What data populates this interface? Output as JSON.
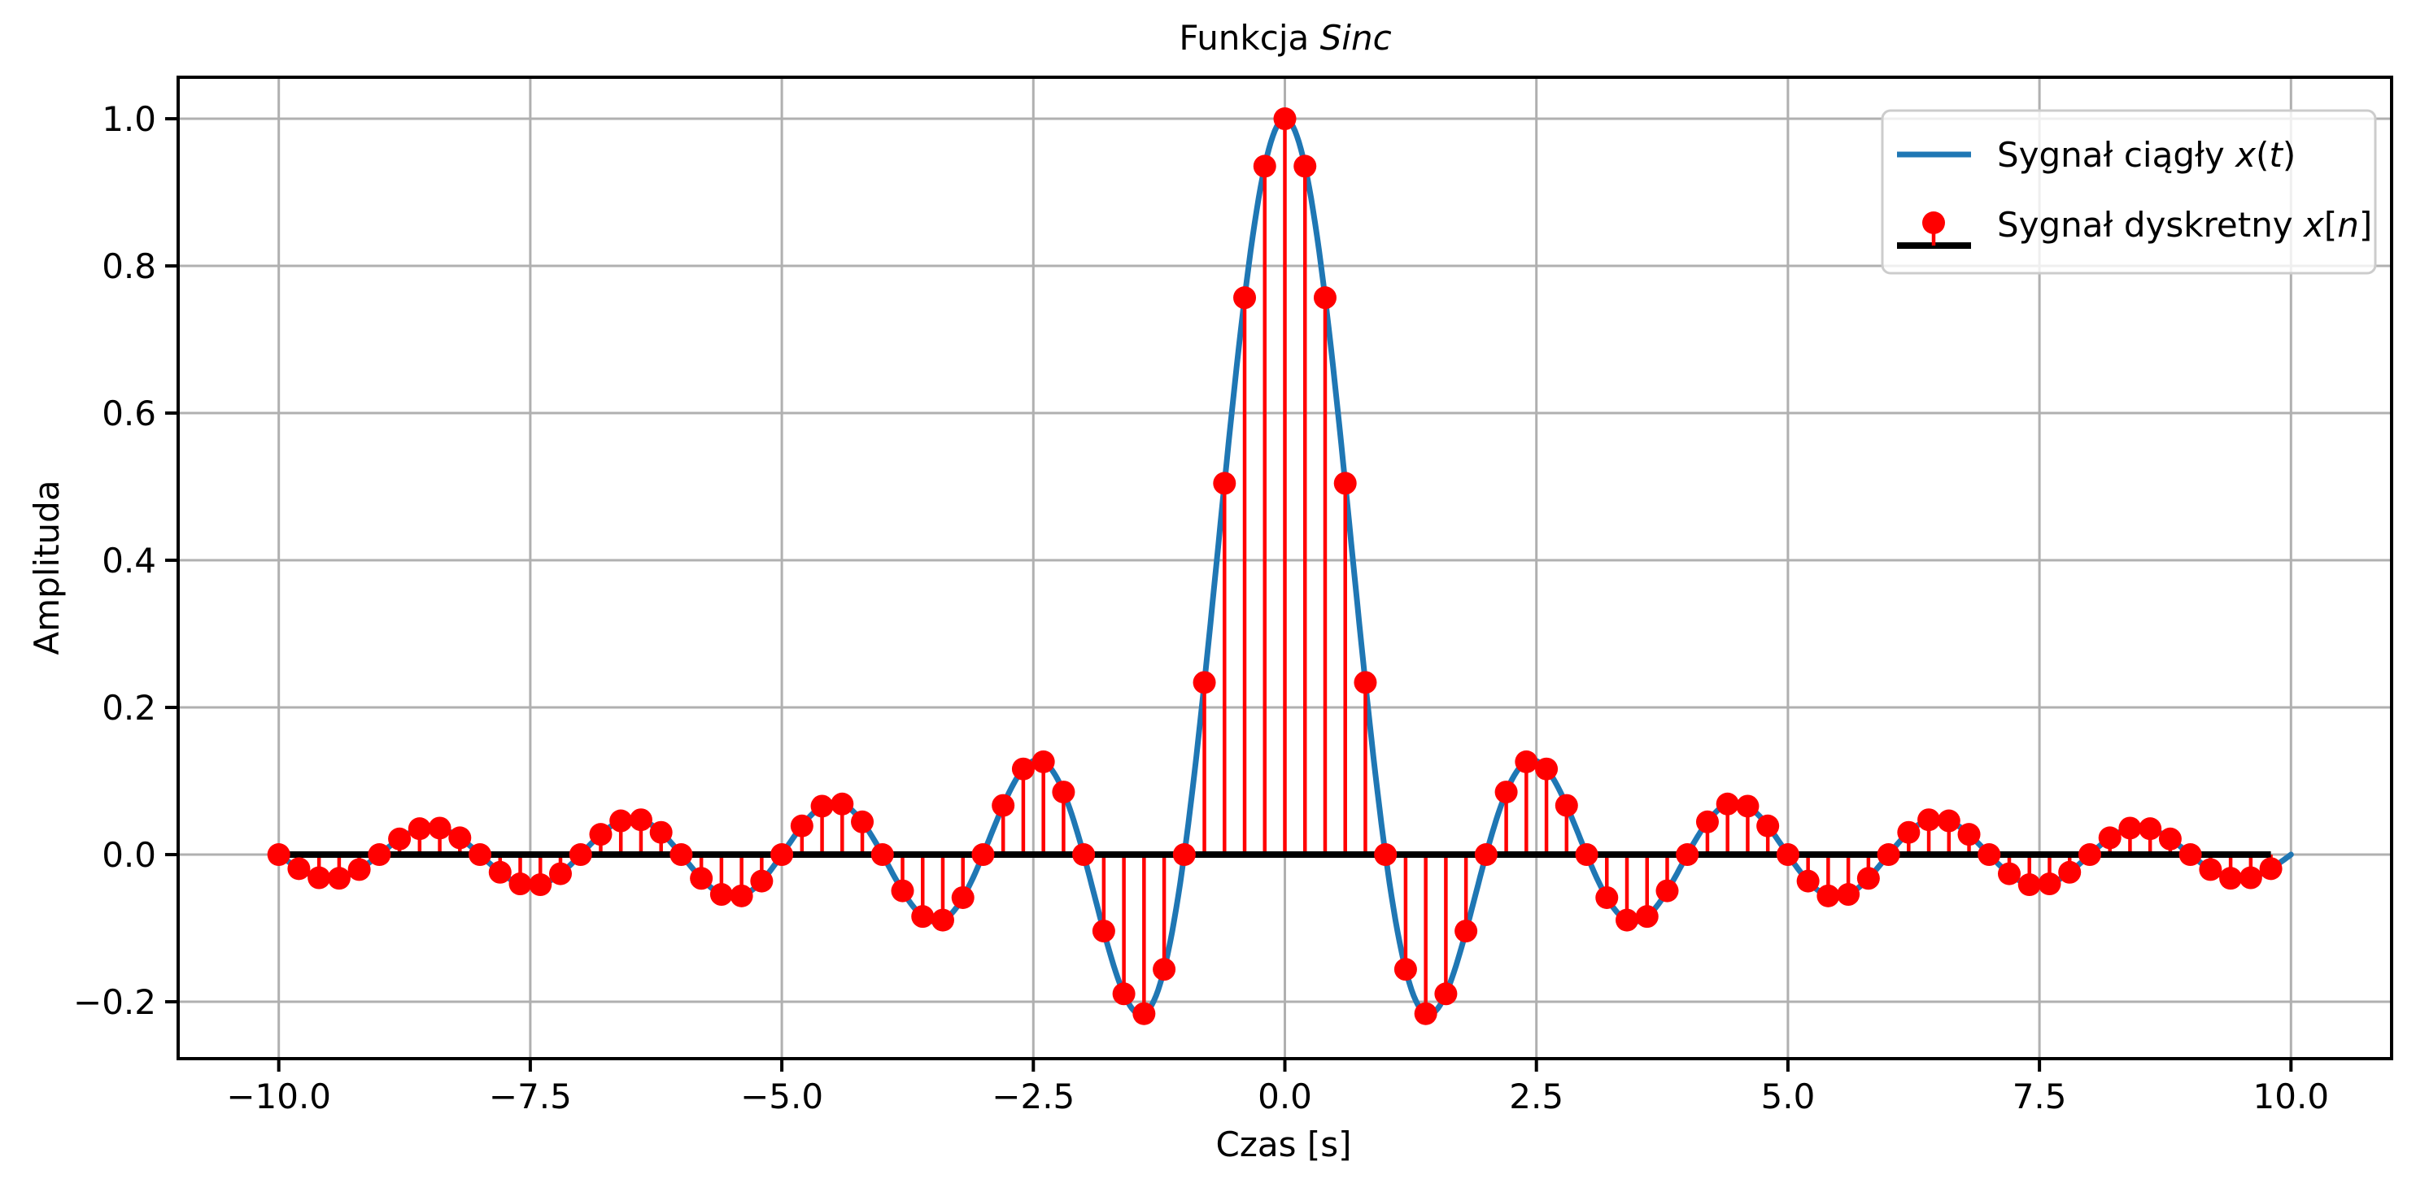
{
  "figure": {
    "background": "#ffffff",
    "title": {
      "prefix": "Funkcja ",
      "math": "Sinc"
    },
    "xlabel": "Czas [s]",
    "ylabel": "Amplituda",
    "legend": {
      "position": "upper right",
      "border_color": "#cccccc",
      "items": [
        {
          "prefix": "Sygnał ciągły ",
          "math": "x(t)",
          "marker": "line",
          "color": "#1f77b4"
        },
        {
          "prefix": "Sygnał dyskretny ",
          "math": "x[n]",
          "marker": "stem",
          "dot_color": "#ff0000",
          "baseline_color": "#000000"
        }
      ]
    }
  },
  "chart_data": {
    "type": "line+stem",
    "title": "Funkcja Sinc",
    "xlabel": "Czas [s]",
    "ylabel": "Amplituda",
    "xlim": [
      -11,
      11
    ],
    "ylim": [
      -0.2773,
      1.0564
    ],
    "x_ticks": [
      -10.0,
      -7.5,
      -5.0,
      -2.5,
      0.0,
      2.5,
      5.0,
      7.5,
      10.0
    ],
    "y_ticks": [
      1.0,
      0.8,
      0.6,
      0.4,
      0.2,
      0.0,
      -0.2
    ],
    "tick_format": "one_decimal_unicode_minus",
    "grid": true,
    "grid_color": "#b0b0b0",
    "legend_position": "upper right",
    "series": [
      {
        "name": "Sygnał ciągły x(t)",
        "type": "line",
        "color": "#1f77b4",
        "function": "sinc(t) = sin(pi*t)/(pi*t)",
        "t_range": [
          -10,
          10
        ],
        "t_step": 0.02
      },
      {
        "name": "Sygnał dyskretny x[n]",
        "type": "stem",
        "color": "#ff0000",
        "baseline_color": "#000000",
        "baseline_y": 0.0,
        "t_start": -10.0,
        "t_step": 0.2,
        "n_samples": 100,
        "t": [
          -10,
          -9.8,
          -9.6,
          -9.4,
          -9.2,
          -9,
          -8.8,
          -8.6,
          -8.4,
          -8.2,
          -8,
          -7.8,
          -7.6,
          -7.4,
          -7.2,
          -7,
          -6.8,
          -6.6,
          -6.4,
          -6.2,
          -6,
          -5.8,
          -5.6,
          -5.4,
          -5.2,
          -5,
          -4.8,
          -4.6,
          -4.4,
          -4.2,
          -4,
          -3.8,
          -3.6,
          -3.4,
          -3.2,
          -3,
          -2.8,
          -2.6,
          -2.4,
          -2.2,
          -2,
          -1.8,
          -1.6,
          -1.4,
          -1.2,
          -1,
          -0.8,
          -0.6,
          -0.4,
          -0.2,
          0,
          0.2,
          0.4,
          0.6,
          0.8,
          1,
          1.2,
          1.4,
          1.6,
          1.8,
          2,
          2.2,
          2.4,
          2.6,
          2.8,
          3,
          3.2,
          3.4,
          3.6,
          3.8,
          4,
          4.2,
          4.4,
          4.6,
          4.8,
          5,
          5.2,
          5.4,
          5.6,
          5.8,
          6,
          6.2,
          6.4,
          6.6,
          6.8,
          7,
          7.2,
          7.4,
          7.6,
          7.8,
          8,
          8.2,
          8.4,
          8.6,
          8.8,
          9,
          9.2,
          9.4,
          9.6,
          9.8
        ],
        "values": [
          0.0,
          -0.0191,
          -0.0315,
          -0.0322,
          -0.0203,
          0.0,
          0.0213,
          0.0352,
          0.036,
          0.0228,
          0.0,
          -0.024,
          -0.0398,
          -0.0409,
          -0.026,
          0.0,
          0.0275,
          0.0459,
          0.0473,
          0.0302,
          0.0,
          -0.0323,
          -0.0541,
          -0.0561,
          -0.036,
          0.0,
          0.039,
          0.0658,
          0.0688,
          0.0445,
          0.0,
          -0.0492,
          -0.0841,
          -0.089,
          -0.0585,
          0.0,
          0.0668,
          0.1164,
          0.1261,
          0.085,
          0.0,
          -0.1039,
          -0.1892,
          -0.2162,
          -0.1559,
          0.0,
          0.2339,
          0.5046,
          0.7568,
          0.9355,
          1.0,
          0.9355,
          0.7568,
          0.5046,
          0.2339,
          0.0,
          -0.1559,
          -0.2162,
          -0.1892,
          -0.1039,
          0.0,
          0.085,
          0.1261,
          0.1164,
          0.0668,
          0.0,
          -0.0585,
          -0.089,
          -0.0841,
          -0.0492,
          0.0,
          0.0445,
          0.0688,
          0.0658,
          0.039,
          0.0,
          -0.036,
          -0.0561,
          -0.0541,
          -0.0323,
          0.0,
          0.0302,
          0.0473,
          0.0459,
          0.0275,
          0.0,
          -0.026,
          -0.0409,
          -0.0398,
          -0.024,
          0.0,
          0.0228,
          0.036,
          0.0352,
          0.0213,
          0.0,
          -0.0203,
          -0.0322,
          -0.0315,
          -0.0191
        ]
      }
    ]
  }
}
